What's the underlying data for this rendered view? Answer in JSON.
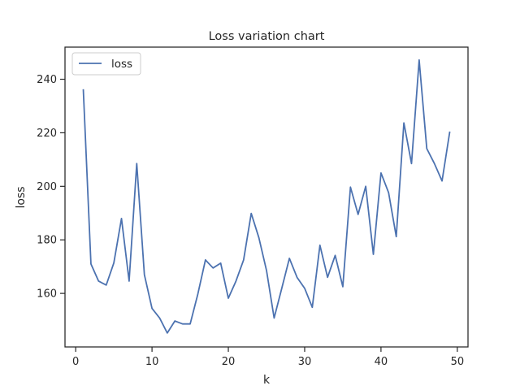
{
  "chart_data": {
    "type": "line",
    "title": "Loss variation chart",
    "xlabel": "k",
    "ylabel": "loss",
    "xlim": [
      -1.4,
      51.4
    ],
    "ylim": [
      140,
      252
    ],
    "xticks": [
      0,
      10,
      20,
      30,
      40,
      50
    ],
    "yticks": [
      160,
      180,
      200,
      220,
      240
    ],
    "grid": false,
    "legend": "top-left",
    "series": [
      {
        "name": "loss",
        "color": "#4c72b0",
        "x": [
          1,
          2,
          3,
          4,
          5,
          6,
          7,
          8,
          9,
          10,
          11,
          12,
          13,
          14,
          15,
          16,
          17,
          18,
          19,
          20,
          21,
          22,
          23,
          24,
          25,
          26,
          27,
          28,
          29,
          30,
          31,
          32,
          33,
          34,
          35,
          36,
          37,
          38,
          39,
          40,
          41,
          42,
          43,
          44,
          45,
          46,
          47,
          48,
          49
        ],
        "y": [
          236,
          171,
          164.6,
          163.1,
          171.4,
          188,
          164.6,
          208.5,
          167,
          154.4,
          150.8,
          145.2,
          149.7,
          148.6,
          148.6,
          159.7,
          172.5,
          169.5,
          171.3,
          158.2,
          164.6,
          172.5,
          189.9,
          180.8,
          168.6,
          150.8,
          161.9,
          173.1,
          166,
          161.9,
          154.8,
          178,
          166,
          174.2,
          162.5,
          199.7,
          189.5,
          200,
          174.6,
          205,
          197.6,
          181.2,
          223.7,
          208.5,
          247.2,
          214.1,
          208.5,
          202,
          220.2
        ]
      }
    ]
  }
}
